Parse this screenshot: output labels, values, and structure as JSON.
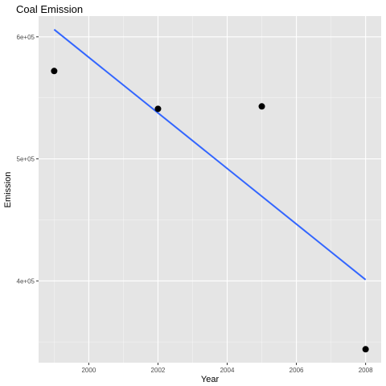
{
  "chart_data": {
    "type": "scatter",
    "title": "Coal Emission",
    "xlabel": "Year",
    "ylabel": "Emission",
    "x": [
      1999,
      2002,
      2005,
      2008
    ],
    "y": [
      572000,
      541000,
      543000,
      344000
    ],
    "xlim": [
      1998.55,
      2008.45
    ],
    "ylim": [
      333000,
      617000
    ],
    "x_ticks": [
      2000,
      2002,
      2004,
      2006,
      2008
    ],
    "x_tick_labels": [
      "2000",
      "2002",
      "2004",
      "2006",
      "2008"
    ],
    "y_ticks": [
      400000,
      500000,
      600000
    ],
    "y_tick_labels": [
      "4e+05",
      "5e+05",
      "6e+05"
    ],
    "trend_line": {
      "x": [
        1999,
        2008
      ],
      "y": [
        606000,
        401000
      ]
    },
    "grid": true,
    "legend": "none",
    "colors": {
      "panel_background": "#e5e5e5",
      "grid_major": "#ffffff",
      "points": "#000000",
      "trend_line": "#3366ff"
    }
  }
}
